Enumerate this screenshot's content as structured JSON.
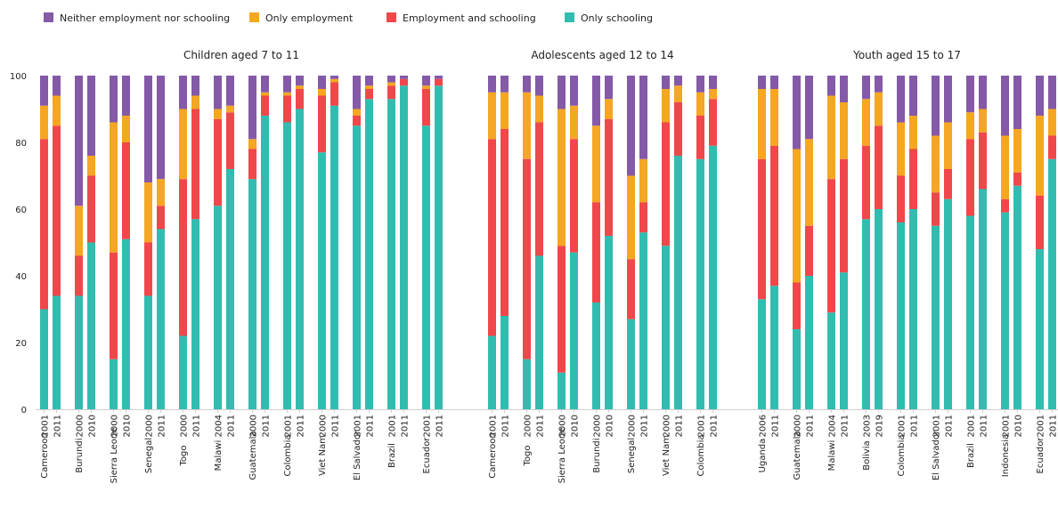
{
  "chart_data": {
    "type": "bar",
    "stacked": true,
    "percent_stacked": true,
    "ylim": [
      0,
      100
    ],
    "yticks": [
      0,
      20,
      40,
      60,
      80,
      100
    ],
    "grid": false,
    "legend_placement": "top-left",
    "categories_legend": [
      {
        "name": "Neither employment nor schooling",
        "color": "#8459a8"
      },
      {
        "name": "Only employment",
        "color": "#f5a623"
      },
      {
        "name": "Employment and schooling",
        "color": "#f0474a"
      },
      {
        "name": "Only schooling",
        "color": "#32bcb0"
      }
    ],
    "series_order_bottom_to_top": [
      "Only schooling",
      "Employment and schooling",
      "Only employment",
      "Neither employment nor schooling"
    ],
    "panels": [
      {
        "title": "Children aged 7 to 11",
        "countries": [
          {
            "name": "Cameroon",
            "bars": [
              {
                "year": "2001",
                "values": [
                  30,
                  51,
                  10,
                  9
                ]
              },
              {
                "year": "2011",
                "values": [
                  34,
                  51,
                  9,
                  6
                ]
              }
            ]
          },
          {
            "name": "Burundi",
            "bars": [
              {
                "year": "2000",
                "values": [
                  34,
                  12,
                  15,
                  39
                ]
              },
              {
                "year": "2010",
                "values": [
                  50,
                  20,
                  6,
                  24
                ]
              }
            ]
          },
          {
            "name": "Sierra Leone",
            "bars": [
              {
                "year": "2000",
                "values": [
                  15,
                  32,
                  39,
                  14
                ]
              },
              {
                "year": "2010",
                "values": [
                  51,
                  29,
                  8,
                  12
                ]
              }
            ]
          },
          {
            "name": "Senegal",
            "bars": [
              {
                "year": "2000",
                "values": [
                  34,
                  16,
                  18,
                  32
                ]
              },
              {
                "year": "2011",
                "values": [
                  54,
                  7,
                  8,
                  31
                ]
              }
            ]
          },
          {
            "name": "Togo",
            "bars": [
              {
                "year": "2000",
                "values": [
                  22,
                  47,
                  21,
                  10
                ]
              },
              {
                "year": "2011",
                "values": [
                  57,
                  33,
                  4,
                  6
                ]
              }
            ]
          },
          {
            "name": "Malawi",
            "bars": [
              {
                "year": "2004",
                "values": [
                  61,
                  26,
                  3,
                  10
                ]
              },
              {
                "year": "2011",
                "values": [
                  72,
                  17,
                  2,
                  9
                ]
              }
            ]
          },
          {
            "name": "Guatemala",
            "bars": [
              {
                "year": "2000",
                "values": [
                  69,
                  9,
                  3,
                  19
                ]
              },
              {
                "year": "2011",
                "values": [
                  88,
                  6,
                  1,
                  5
                ]
              }
            ]
          },
          {
            "name": "Colombia",
            "bars": [
              {
                "year": "2001",
                "values": [
                  86,
                  8,
                  1,
                  5
                ]
              },
              {
                "year": "2011",
                "values": [
                  90,
                  6,
                  1,
                  3
                ]
              }
            ]
          },
          {
            "name": "Viet Nam",
            "bars": [
              {
                "year": "2000",
                "values": [
                  77,
                  17,
                  2,
                  4
                ]
              },
              {
                "year": "2011",
                "values": [
                  91,
                  7,
                  1,
                  1
                ]
              }
            ]
          },
          {
            "name": "El Salvador",
            "bars": [
              {
                "year": "2001",
                "values": [
                  85,
                  3,
                  2,
                  10
                ]
              },
              {
                "year": "2011",
                "values": [
                  93,
                  3,
                  1,
                  3
                ]
              }
            ]
          },
          {
            "name": "Brazil",
            "bars": [
              {
                "year": "2001",
                "values": [
                  93,
                  4,
                  1,
                  2
                ]
              },
              {
                "year": "2011",
                "values": [
                  97,
                  2,
                  0,
                  1
                ]
              }
            ]
          },
          {
            "name": "Ecuador",
            "bars": [
              {
                "year": "2001",
                "values": [
                  85,
                  11,
                  1,
                  3
                ]
              },
              {
                "year": "2011",
                "values": [
                  97,
                  2,
                  0,
                  1
                ]
              }
            ]
          }
        ]
      },
      {
        "title": "Adolescents aged 12 to 14",
        "countries": [
          {
            "name": "Cameroon",
            "bars": [
              {
                "year": "2001",
                "values": [
                  22,
                  59,
                  14,
                  5
                ]
              },
              {
                "year": "2011",
                "values": [
                  28,
                  56,
                  11,
                  5
                ]
              }
            ]
          },
          {
            "name": "Togo",
            "bars": [
              {
                "year": "2000",
                "values": [
                  15,
                  60,
                  20,
                  5
                ]
              },
              {
                "year": "2011",
                "values": [
                  46,
                  40,
                  8,
                  6
                ]
              }
            ]
          },
          {
            "name": "Sierra Leone",
            "bars": [
              {
                "year": "2000",
                "values": [
                  11,
                  38,
                  41,
                  10
                ]
              },
              {
                "year": "2010",
                "values": [
                  47,
                  34,
                  10,
                  9
                ]
              }
            ]
          },
          {
            "name": "Burundi",
            "bars": [
              {
                "year": "2000",
                "values": [
                  32,
                  30,
                  23,
                  15
                ]
              },
              {
                "year": "2010",
                "values": [
                  52,
                  35,
                  6,
                  7
                ]
              }
            ]
          },
          {
            "name": "Senegal",
            "bars": [
              {
                "year": "2000",
                "values": [
                  27,
                  18,
                  25,
                  30
                ]
              },
              {
                "year": "2011",
                "values": [
                  53,
                  9,
                  13,
                  25
                ]
              }
            ]
          },
          {
            "name": "Viet Nam",
            "bars": [
              {
                "year": "2000",
                "values": [
                  49,
                  37,
                  10,
                  4
                ]
              },
              {
                "year": "2011",
                "values": [
                  76,
                  16,
                  5,
                  3
                ]
              }
            ]
          },
          {
            "name": "Colombia",
            "bars": [
              {
                "year": "2001",
                "values": [
                  75,
                  13,
                  7,
                  5
                ]
              },
              {
                "year": "2011",
                "values": [
                  79,
                  14,
                  3,
                  4
                ]
              }
            ]
          }
        ]
      },
      {
        "title": "Youth aged 15 to 17",
        "countries": [
          {
            "name": "Uganda",
            "bars": [
              {
                "year": "2006",
                "values": [
                  33,
                  42,
                  21,
                  4
                ]
              },
              {
                "year": "2011",
                "values": [
                  37,
                  42,
                  17,
                  4
                ]
              }
            ]
          },
          {
            "name": "Guatemala",
            "bars": [
              {
                "year": "2000",
                "values": [
                  24,
                  14,
                  40,
                  22
                ]
              },
              {
                "year": "2011",
                "values": [
                  40,
                  15,
                  26,
                  19
                ]
              }
            ]
          },
          {
            "name": "Malawi",
            "bars": [
              {
                "year": "2004",
                "values": [
                  29,
                  40,
                  25,
                  6
                ]
              },
              {
                "year": "2011",
                "values": [
                  41,
                  34,
                  17,
                  8
                ]
              }
            ]
          },
          {
            "name": "Bolivia",
            "bars": [
              {
                "year": "2003",
                "values": [
                  57,
                  22,
                  14,
                  7
                ]
              },
              {
                "year": "2019",
                "values": [
                  60,
                  25,
                  10,
                  5
                ]
              }
            ]
          },
          {
            "name": "Colombia",
            "bars": [
              {
                "year": "2001",
                "values": [
                  56,
                  14,
                  16,
                  14
                ]
              },
              {
                "year": "2011",
                "values": [
                  60,
                  18,
                  10,
                  12
                ]
              }
            ]
          },
          {
            "name": "El Salvador",
            "bars": [
              {
                "year": "2001",
                "values": [
                  55,
                  10,
                  17,
                  18
                ]
              },
              {
                "year": "2011",
                "values": [
                  63,
                  9,
                  14,
                  14
                ]
              }
            ]
          },
          {
            "name": "Brazil",
            "bars": [
              {
                "year": "2001",
                "values": [
                  58,
                  23,
                  8,
                  11
                ]
              },
              {
                "year": "2011",
                "values": [
                  66,
                  17,
                  7,
                  10
                ]
              }
            ]
          },
          {
            "name": "Indonesia",
            "bars": [
              {
                "year": "2001",
                "values": [
                  59,
                  4,
                  19,
                  18
                ]
              },
              {
                "year": "2010",
                "values": [
                  67,
                  4,
                  13,
                  16
                ]
              }
            ]
          },
          {
            "name": "Ecuador",
            "bars": [
              {
                "year": "2001",
                "values": [
                  48,
                  16,
                  24,
                  12
                ]
              },
              {
                "year": "2011",
                "values": [
                  75,
                  7,
                  8,
                  10
                ]
              }
            ]
          }
        ]
      }
    ]
  }
}
